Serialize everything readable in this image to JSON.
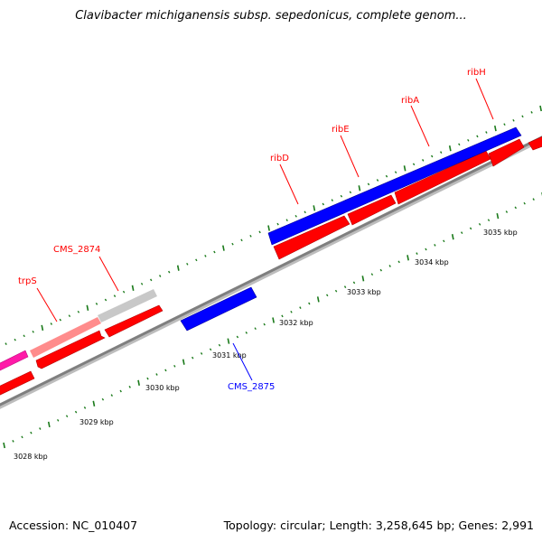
{
  "title": "Clavibacter michiganensis subsp. sepedonicus, complete genom...",
  "footer": {
    "accession": "Accession: NC_010407",
    "summary": "Topology: circular; Length: 3,258,645 bp; Genes: 2,991"
  },
  "colors": {
    "forward_gene": "#ff0000",
    "reverse_gene": "#0000ff",
    "rna_gene": "#ff1aa8",
    "highlight": "#c8c8c8",
    "backbone": "#7f7f7f",
    "ticks": "#1a7a1a"
  },
  "scale_labels": [
    "3028 kbp",
    "3029 kbp",
    "3030 kbp",
    "3031 kbp",
    "3032 kbp",
    "3033 kbp",
    "3034 kbp",
    "3035 kbp"
  ],
  "gene_labels": [
    {
      "text": "trpS",
      "strand": "forward"
    },
    {
      "text": "CMS_2874",
      "strand": "forward"
    },
    {
      "text": "ribD",
      "strand": "forward"
    },
    {
      "text": "ribE",
      "strand": "forward"
    },
    {
      "text": "ribA",
      "strand": "forward"
    },
    {
      "text": "ribH",
      "strand": "forward"
    },
    {
      "text": "CMS_2875",
      "strand": "reverse"
    }
  ]
}
